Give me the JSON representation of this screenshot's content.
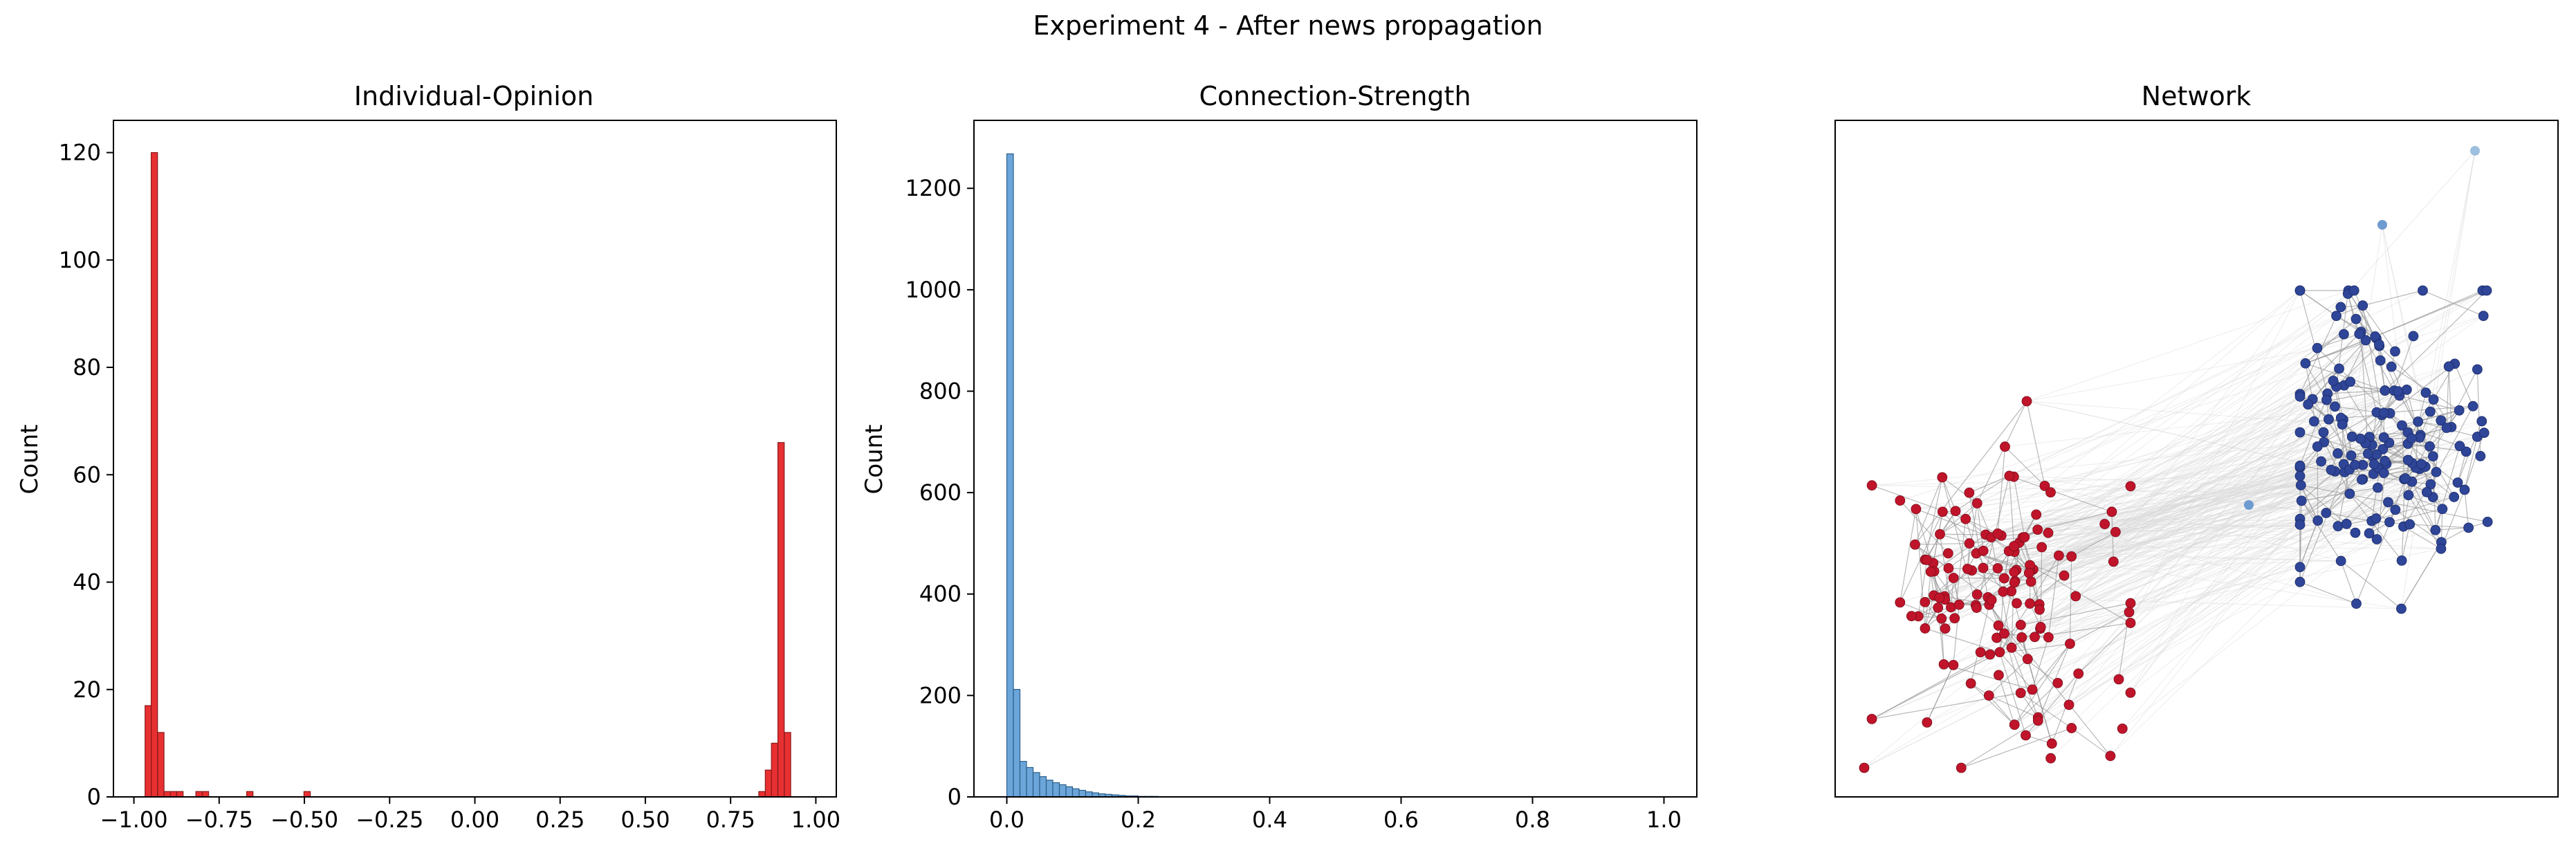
{
  "suptitle": "Experiment 4 - After news propagation",
  "colors": {
    "opinion_bar": "#e41a1c",
    "opinion_edge": "#8b1a1a",
    "strength_bar": "#5b9bd5",
    "strength_edge": "#2c5f8a",
    "node_red": "#c0142a",
    "node_blue": "#2e4598",
    "node_light_blue": "#6e9bd0",
    "edge_gray": "#9a9a9a"
  },
  "chart_data": [
    {
      "type": "histogram",
      "title": "Individual-Opinion",
      "xlabel": "",
      "ylabel": "Count",
      "xlim": [
        -1.06,
        1.06
      ],
      "ylim": [
        0,
        126
      ],
      "xticks": [
        -1.0,
        -0.75,
        -0.5,
        -0.25,
        0.0,
        0.25,
        0.5,
        0.75,
        1.0
      ],
      "xtick_labels": [
        "−1.00",
        "−0.75",
        "−0.50",
        "−0.25",
        "0.00",
        "0.25",
        "0.50",
        "0.75",
        "1.00"
      ],
      "yticks": [
        0,
        20,
        40,
        60,
        80,
        100,
        120
      ],
      "ytick_labels": [
        "0",
        "20",
        "40",
        "60",
        "80",
        "100",
        "120"
      ],
      "bin_width": 0.0186,
      "bins": [
        {
          "x": -0.958,
          "count": 17
        },
        {
          "x": -0.94,
          "count": 120
        },
        {
          "x": -0.921,
          "count": 12
        },
        {
          "x": -0.902,
          "count": 1
        },
        {
          "x": -0.884,
          "count": 1
        },
        {
          "x": -0.865,
          "count": 1
        },
        {
          "x": -0.809,
          "count": 1
        },
        {
          "x": -0.79,
          "count": 1
        },
        {
          "x": -0.66,
          "count": 1
        },
        {
          "x": -0.492,
          "count": 1
        },
        {
          "x": 0.842,
          "count": 1
        },
        {
          "x": 0.861,
          "count": 5
        },
        {
          "x": 0.879,
          "count": 10
        },
        {
          "x": 0.898,
          "count": 66
        },
        {
          "x": 0.917,
          "count": 12
        }
      ]
    },
    {
      "type": "histogram",
      "title": "Connection-Strength",
      "xlabel": "",
      "ylabel": "Count",
      "xlim": [
        -0.05,
        1.05
      ],
      "ylim": [
        0,
        1334
      ],
      "xticks": [
        0.0,
        0.2,
        0.4,
        0.6,
        0.8,
        1.0
      ],
      "xtick_labels": [
        "0.0",
        "0.2",
        "0.4",
        "0.6",
        "0.8",
        "1.0"
      ],
      "yticks": [
        0,
        200,
        400,
        600,
        800,
        1000,
        1200
      ],
      "ytick_labels": [
        "0",
        "200",
        "400",
        "600",
        "800",
        "1000",
        "1200"
      ],
      "bin_width": 0.01,
      "bins": [
        {
          "x": 0.005,
          "count": 1268
        },
        {
          "x": 0.015,
          "count": 212
        },
        {
          "x": 0.025,
          "count": 70
        },
        {
          "x": 0.035,
          "count": 58
        },
        {
          "x": 0.045,
          "count": 48
        },
        {
          "x": 0.055,
          "count": 40
        },
        {
          "x": 0.065,
          "count": 33
        },
        {
          "x": 0.075,
          "count": 28
        },
        {
          "x": 0.085,
          "count": 24
        },
        {
          "x": 0.095,
          "count": 20
        },
        {
          "x": 0.105,
          "count": 16
        },
        {
          "x": 0.115,
          "count": 13
        },
        {
          "x": 0.125,
          "count": 10
        },
        {
          "x": 0.135,
          "count": 8
        },
        {
          "x": 0.145,
          "count": 6
        },
        {
          "x": 0.155,
          "count": 5
        },
        {
          "x": 0.165,
          "count": 4
        },
        {
          "x": 0.175,
          "count": 3
        },
        {
          "x": 0.185,
          "count": 2
        },
        {
          "x": 0.195,
          "count": 2
        },
        {
          "x": 0.205,
          "count": 1
        },
        {
          "x": 0.215,
          "count": 1
        },
        {
          "x": 0.225,
          "count": 1
        }
      ]
    },
    {
      "type": "network",
      "title": "Network",
      "groups": [
        {
          "name": "negative-opinion cluster",
          "color": "#c0142a",
          "node_count": 150
        },
        {
          "name": "positive-opinion cluster",
          "color": "#2e4598",
          "node_count": 100
        }
      ],
      "outlier_nodes": 4
    }
  ]
}
